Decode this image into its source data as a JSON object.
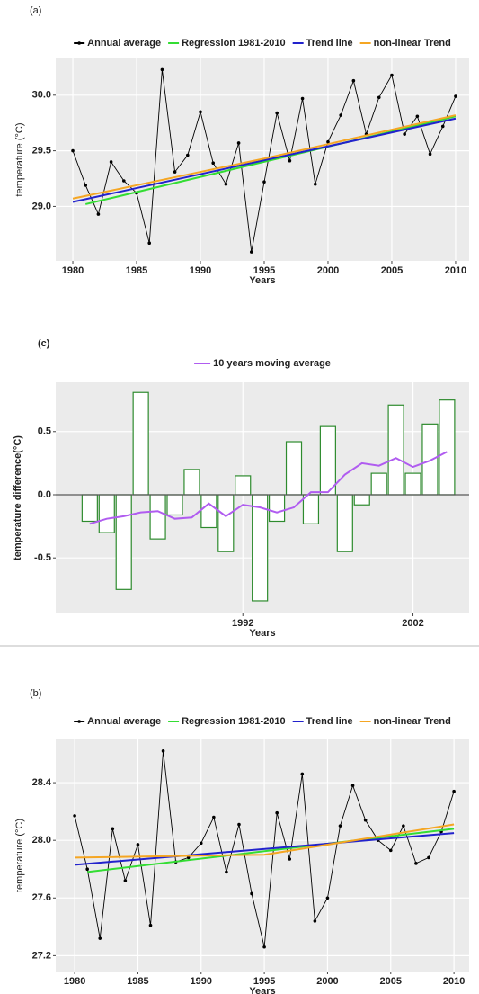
{
  "chart_data": [
    {
      "type": "line",
      "title": "(a)",
      "xlabel": "Years",
      "ylabel": "temperature (°C)",
      "series": [
        {
          "name": "Annual average",
          "color": "#000000",
          "marker": true,
          "x": [
            1980,
            1981,
            1982,
            1983,
            1984,
            1985,
            1986,
            1987,
            1988,
            1989,
            1990,
            1991,
            1992,
            1993,
            1994,
            1995,
            1996,
            1997,
            1998,
            1999,
            2000,
            2001,
            2002,
            2003,
            2004,
            2005,
            2006,
            2007,
            2008,
            2009,
            2010
          ],
          "values": [
            29.5,
            29.19,
            28.93,
            29.4,
            29.23,
            29.12,
            28.67,
            30.23,
            29.31,
            29.46,
            29.85,
            29.39,
            29.2,
            29.57,
            28.59,
            29.22,
            29.84,
            29.41,
            29.97,
            29.2,
            29.58,
            29.82,
            30.13,
            29.65,
            29.98,
            30.18,
            29.65,
            29.81,
            29.47,
            29.72,
            29.99
          ]
        },
        {
          "name": "Regression 1981-2010",
          "color": "#33dd33",
          "x": [
            1981,
            2010
          ],
          "values": [
            29.02,
            29.81
          ]
        },
        {
          "name": "Trend line",
          "color": "#2222cc",
          "x": [
            1980,
            2010
          ],
          "values": [
            29.04,
            29.79
          ]
        },
        {
          "name": "non-linear Trend",
          "color": "#f5a623",
          "x": [
            1980,
            1995,
            2010
          ],
          "values": [
            29.07,
            29.43,
            29.82
          ]
        }
      ],
      "xlim": [
        1978.66,
        2011.06
      ],
      "xticks": [
        1980,
        1985,
        1990,
        1995,
        2000,
        2005,
        2010
      ],
      "ylim": [
        28.51,
        30.33
      ],
      "yticks": [
        {
          "value": 29,
          "label": "29.0"
        },
        29.5,
        {
          "value": 30,
          "label": "30.0"
        }
      ],
      "grid": true
    },
    {
      "type": "bar",
      "title": "(c)",
      "xlabel": "Years",
      "ylabel": "temperature difference(°C)",
      "x": [
        1983,
        1984,
        1985,
        1986,
        1987,
        1988,
        1989,
        1990,
        1991,
        1992,
        1993,
        1994,
        1995,
        1996,
        1997,
        1998,
        1999,
        2000,
        2001,
        2002,
        2003,
        2004
      ],
      "values": [
        -0.21,
        -0.3,
        -0.75,
        0.81,
        -0.35,
        -0.16,
        0.2,
        -0.26,
        -0.45,
        0.15,
        -0.84,
        -0.21,
        0.42,
        -0.23,
        0.54,
        -0.45,
        -0.08,
        0.17,
        0.71,
        0.17,
        0.56,
        0.75
      ],
      "bar_fill": "#ffffff",
      "bar_edge": "#2e8b2e",
      "hline": 0,
      "series": [
        {
          "name": "10 years moving average",
          "color": "#b05cf0",
          "values": [
            -0.23,
            -0.19,
            -0.17,
            -0.14,
            -0.13,
            -0.19,
            -0.18,
            -0.07,
            -0.17,
            -0.08,
            -0.1,
            -0.14,
            -0.1,
            0.02,
            0.02,
            0.16,
            0.25,
            0.23,
            0.29,
            0.22,
            0.27,
            0.34
          ]
        }
      ],
      "xlim": [
        1981,
        2005.3
      ],
      "xticks": [
        1992,
        2002
      ],
      "ylim": [
        -0.94,
        0.89
      ],
      "yticks": [
        -0.5,
        {
          "value": 0,
          "label": "0.0"
        },
        0.5
      ],
      "grid": true
    },
    {
      "type": "line",
      "title": "(b)",
      "xlabel": "Years",
      "ylabel": "temperature (°C)",
      "series": [
        {
          "name": "Annual average",
          "color": "#000000",
          "marker": true,
          "x": [
            1980,
            1981,
            1982,
            1983,
            1984,
            1985,
            1986,
            1987,
            1988,
            1989,
            1990,
            1991,
            1992,
            1993,
            1994,
            1995,
            1996,
            1997,
            1998,
            1999,
            2000,
            2001,
            2002,
            2003,
            2004,
            2005,
            2006,
            2007,
            2008,
            2009,
            2010
          ],
          "values": [
            28.17,
            27.8,
            27.32,
            28.08,
            27.72,
            27.97,
            27.41,
            28.62,
            27.85,
            27.88,
            27.98,
            28.16,
            27.78,
            28.11,
            27.63,
            27.26,
            28.19,
            27.87,
            28.46,
            27.44,
            27.6,
            28.1,
            28.38,
            28.14,
            28.0,
            27.93,
            28.1,
            27.84,
            27.88,
            28.06,
            28.34
          ]
        },
        {
          "name": "Regression 1981-2010",
          "color": "#33dd33",
          "x": [
            1981,
            2010
          ],
          "values": [
            27.78,
            28.08
          ]
        },
        {
          "name": "Trend line",
          "color": "#2222cc",
          "x": [
            1980,
            2010
          ],
          "values": [
            27.83,
            28.05
          ]
        },
        {
          "name": "non-linear Trend",
          "color": "#f5a623",
          "x": [
            1980,
            1995,
            2010
          ],
          "values": [
            27.88,
            27.9,
            28.11
          ]
        }
      ],
      "xlim": [
        1978.5,
        2011.2
      ],
      "xticks": [
        1980,
        1985,
        1990,
        1995,
        2000,
        2005,
        2010
      ],
      "ylim": [
        27.09,
        28.7
      ],
      "yticks": [
        27.2,
        27.6,
        {
          "value": 28,
          "label": "28.0"
        },
        28.4
      ],
      "grid": true
    }
  ]
}
